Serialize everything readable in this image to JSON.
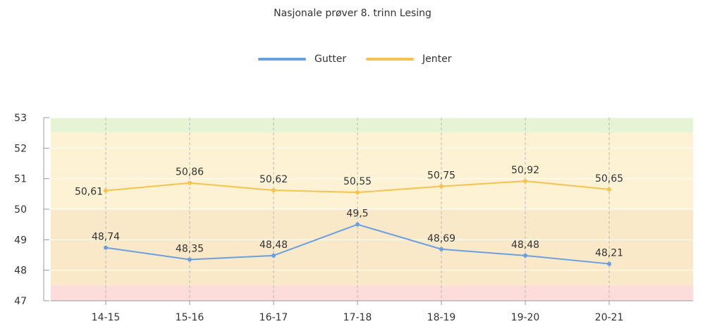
{
  "chart_data": {
    "type": "line",
    "title": "Nasjonale prøver 8. trinn Lesing",
    "categories": [
      "14-15",
      "15-16",
      "16-17",
      "17-18",
      "18-19",
      "19-20",
      "20-21"
    ],
    "series": [
      {
        "name": "Gutter",
        "color": "#6a9fe0",
        "values": [
          48.74,
          48.35,
          48.48,
          49.5,
          48.69,
          48.48,
          48.21
        ],
        "labels": [
          "48,74",
          "48,35",
          "48,48",
          "49,5",
          "48,69",
          "48,48",
          "48,21"
        ]
      },
      {
        "name": "Jenter",
        "color": "#f5c34e",
        "values": [
          50.61,
          50.86,
          50.62,
          50.55,
          50.75,
          50.92,
          50.65
        ],
        "labels": [
          "50,61",
          "50,86",
          "50,62",
          "50,55",
          "50,75",
          "50,92",
          "50,65"
        ]
      }
    ],
    "ylim": [
      47,
      53
    ],
    "yticks": [
      "47",
      "48",
      "49",
      "50",
      "51",
      "52",
      "53"
    ],
    "bands": [
      {
        "from": 52.5,
        "to": 53,
        "color": "#e6f3d4"
      },
      {
        "from": 50,
        "to": 52.5,
        "color": "#fdf3d4"
      },
      {
        "from": 47.5,
        "to": 50,
        "color": "#fae9c9"
      },
      {
        "from": 47,
        "to": 47.5,
        "color": "#fddcdc"
      }
    ],
    "legend_position": "top-center",
    "grid": true
  }
}
